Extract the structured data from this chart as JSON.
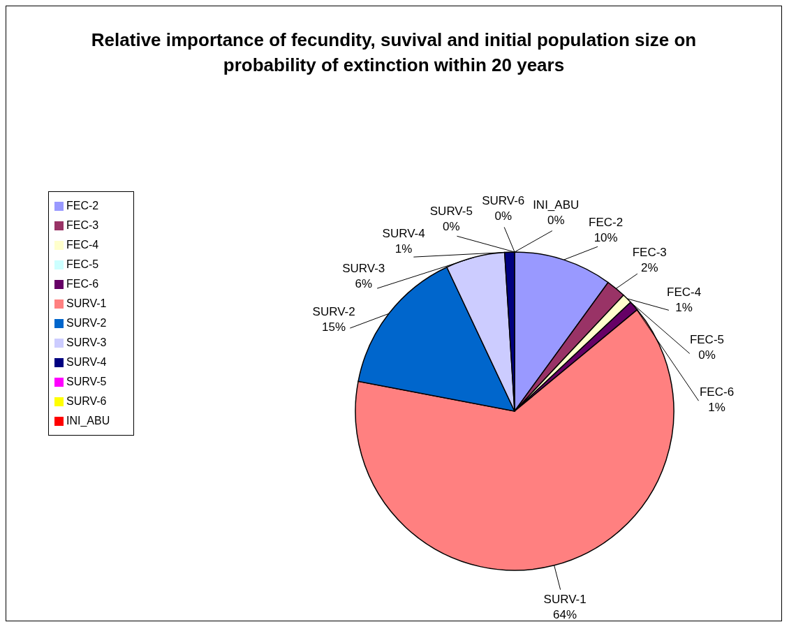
{
  "chart_data": {
    "type": "pie",
    "title": "Relative importance of  fecundity, suvival and initial population size on probability of extinction  within 20 years",
    "categories": [
      "FEC-2",
      "FEC-3",
      "FEC-4",
      "FEC-5",
      "FEC-6",
      "SURV-1",
      "SURV-2",
      "SURV-3",
      "SURV-4",
      "SURV-5",
      "SURV-6",
      "INI_ABU"
    ],
    "values": [
      10,
      2,
      1,
      0,
      1,
      64,
      15,
      6,
      1,
      0,
      0,
      0
    ],
    "value_labels": [
      "10%",
      "2%",
      "1%",
      "0%",
      "1%",
      "64%",
      "15%",
      "6%",
      "1%",
      "0%",
      "0%",
      "0%"
    ],
    "colors": [
      "#9999ff",
      "#993366",
      "#ffffcc",
      "#ccffff",
      "#660066",
      "#ff8080",
      "#0066cc",
      "#ccccff",
      "#000080",
      "#ff00ff",
      "#ffff00",
      "#ff0000"
    ],
    "legend": "left"
  }
}
